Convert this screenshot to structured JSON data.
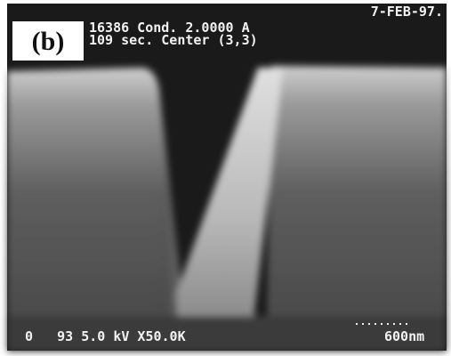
{
  "panel_label": "(b)",
  "header": {
    "date": "7-FEB-97.",
    "line1": "16386 Cond. 2.0000 A",
    "line2": "109 sec. Center (3,3)"
  },
  "footer": {
    "info": "0   93 5.0 kV X50.0K",
    "scale": "600nm"
  }
}
